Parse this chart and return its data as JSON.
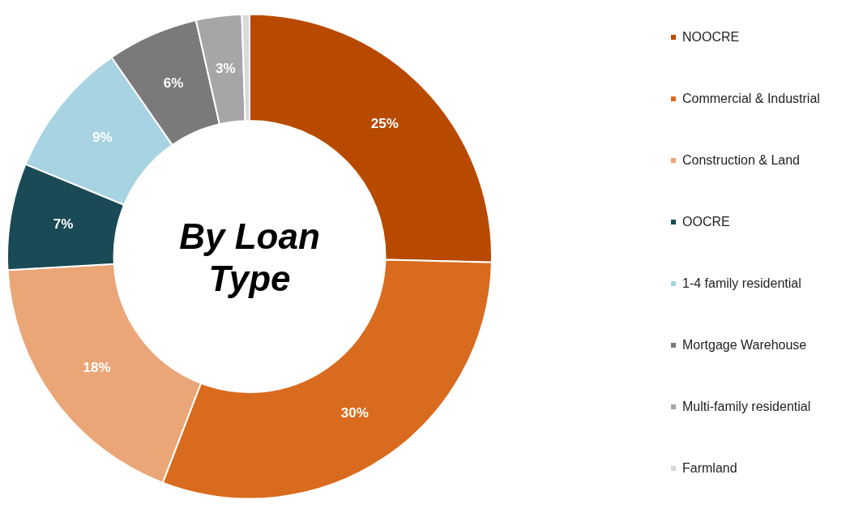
{
  "chart_data": {
    "type": "donut",
    "title": "By Loan Type",
    "categories": [
      "NOOCRE",
      "Commercial & Industrial",
      "Construction & Land",
      "OOCRE",
      "1-4 family residential",
      "Mortgage Warehouse",
      "Multi-family residential",
      "Farmland"
    ],
    "values": [
      25,
      30,
      18,
      7,
      9,
      6,
      3,
      0.5
    ],
    "value_labels": [
      "25%",
      "30%",
      "18%",
      "7%",
      "9%",
      "6%",
      "3%",
      null
    ],
    "colors": [
      "#b84a00",
      "#d96b1f",
      "#eba677",
      "#1a4a55",
      "#a8d3e3",
      "#7a7a7a",
      "#a6a6a6",
      "#d9d9d9"
    ],
    "legend": "right"
  }
}
